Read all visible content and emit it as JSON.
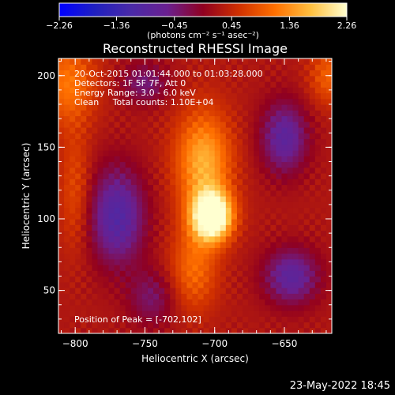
{
  "chart_data": {
    "type": "heatmap",
    "title": "Reconstructed RHESSI Image",
    "xlabel": "Heliocentric X (arcsec)",
    "ylabel": "Heliocentric Y (arcsec)",
    "xlim": [
      -812,
      -616
    ],
    "ylim": [
      20,
      212
    ],
    "x_ticks": [
      -800,
      -750,
      -700,
      -650
    ],
    "y_ticks": [
      50,
      100,
      150,
      200
    ],
    "x_tick_labels": [
      "−800",
      "−750",
      "−700",
      "−650"
    ],
    "y_tick_labels": [
      "50",
      "100",
      "150",
      "200"
    ],
    "colorbar": {
      "min": -2.26,
      "max": 2.26,
      "ticks": [
        -2.26,
        -1.36,
        -0.45,
        0.45,
        1.36,
        2.26
      ],
      "tick_labels": [
        "−2.26",
        "−1.36",
        "−0.45",
        "0.45",
        "1.36",
        "2.26"
      ],
      "units_label": "(photons cm⁻² s⁻¹ asec⁻²)",
      "colormap": [
        "#0000ff",
        "#2020c0",
        "#4a2aa8",
        "#6a2090",
        "#900020",
        "#d03000",
        "#ff7000",
        "#ffc040",
        "#ffffd0"
      ]
    },
    "annotations": {
      "time_range": "20-Oct-2015 01:01:44.000 to 01:03:28.000",
      "detectors": "Detectors: 1F 5F 7F, Att 0",
      "energy_range": "Energy Range: 3.0 - 6.0 keV",
      "clean": "Clean     Total counts: 1.10E+04",
      "peak_position": "Position of Peak = [-702,102]"
    },
    "peak": {
      "x": -702,
      "y": 102,
      "value": 2.26
    },
    "sources": [
      {
        "x": -702,
        "y": 102,
        "sx": 10,
        "sy": 12,
        "amp": 3.0
      },
      {
        "x": -708,
        "y": 140,
        "sx": 14,
        "sy": 25,
        "amp": 1.5
      },
      {
        "x": -715,
        "y": 65,
        "sx": 12,
        "sy": 20,
        "amp": 0.9
      },
      {
        "x": -805,
        "y": 195,
        "sx": 14,
        "sy": 20,
        "amp": 1.0
      },
      {
        "x": -800,
        "y": 120,
        "sx": 8,
        "sy": 30,
        "amp": 0.6
      },
      {
        "x": -618,
        "y": 200,
        "sx": 10,
        "sy": 14,
        "amp": 0.8
      },
      {
        "x": -770,
        "y": 102,
        "sx": 14,
        "sy": 24,
        "amp": -1.4
      },
      {
        "x": -650,
        "y": 157,
        "sx": 12,
        "sy": 18,
        "amp": -1.2
      },
      {
        "x": -645,
        "y": 60,
        "sx": 14,
        "sy": 14,
        "amp": -1.2
      },
      {
        "x": -750,
        "y": 195,
        "sx": 12,
        "sy": 10,
        "amp": -0.8
      },
      {
        "x": -745,
        "y": 45,
        "sx": 12,
        "sy": 14,
        "amp": -0.7
      }
    ],
    "grid": false
  },
  "timestamp": "23-May-2022 18:45"
}
